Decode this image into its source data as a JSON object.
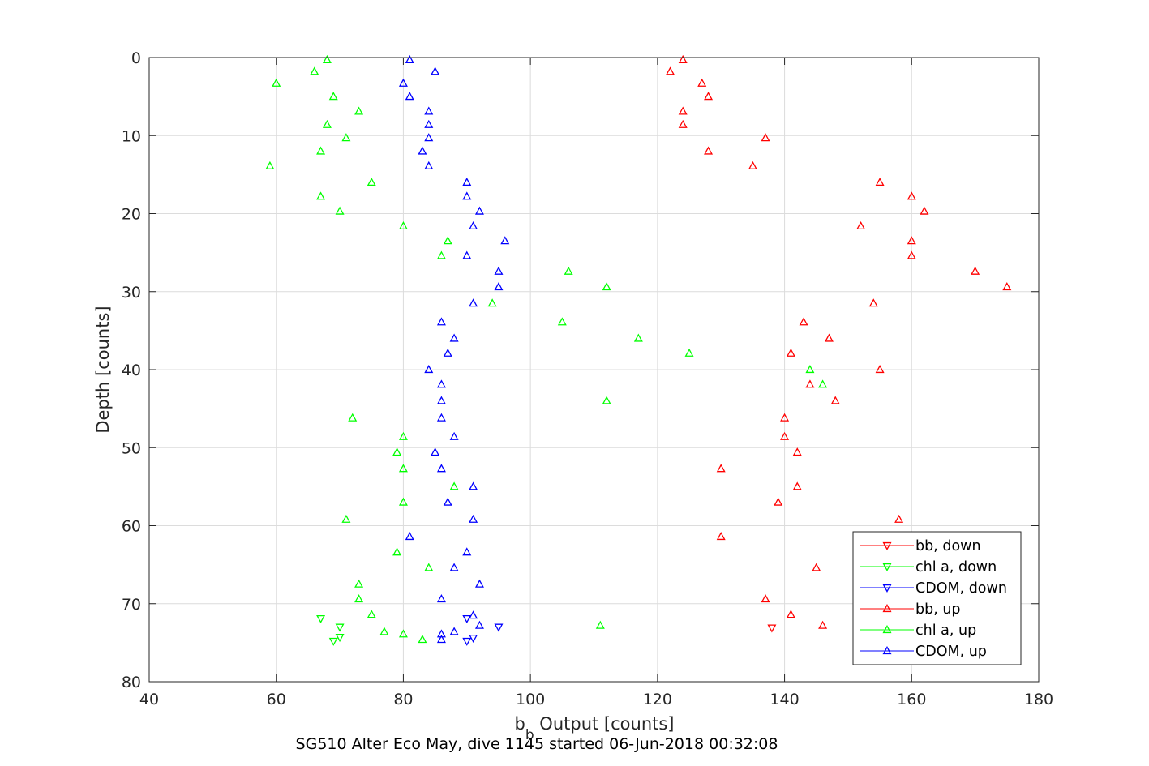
{
  "chart_data": {
    "type": "scatter",
    "title": "SG510 Alter Eco May, dive 1145 started 06-Jun-2018 00:32:08",
    "xlabel_main": "b",
    "xlabel_sub": "b",
    "xlabel_rest": " Output [counts]",
    "ylabel": "Depth [counts]",
    "xlim": [
      40,
      180
    ],
    "ylim": [
      0,
      80
    ],
    "y_reversed": true,
    "grid": true,
    "legend_position": "bottom-right",
    "x_ticks": [
      "40",
      "60",
      "80",
      "100",
      "120",
      "140",
      "160",
      "180"
    ],
    "y_ticks": [
      "0",
      "10",
      "20",
      "30",
      "40",
      "50",
      "60",
      "70",
      "80"
    ],
    "series": [
      {
        "name": "bb, down",
        "color": "#ff0000",
        "marker": "triangle-down",
        "points": [
          [
            138,
            73.1
          ]
        ]
      },
      {
        "name": "chl a, down",
        "color": "#00ff00",
        "marker": "triangle-down",
        "points": [
          [
            67,
            71.9
          ],
          [
            70,
            73.0
          ],
          [
            70,
            74.3
          ],
          [
            69,
            74.8
          ]
        ]
      },
      {
        "name": "CDOM, down",
        "color": "#0000ff",
        "marker": "triangle-down",
        "points": [
          [
            90,
            71.9
          ],
          [
            95,
            73.0
          ],
          [
            91,
            74.4
          ],
          [
            90,
            74.8
          ]
        ]
      },
      {
        "name": "bb, up",
        "color": "#ff0000",
        "marker": "triangle-up",
        "points": [
          [
            124,
            0.3
          ],
          [
            122,
            1.8
          ],
          [
            127,
            3.3
          ],
          [
            128,
            5.0
          ],
          [
            124,
            6.9
          ],
          [
            124,
            8.6
          ],
          [
            137,
            10.3
          ],
          [
            128,
            12.0
          ],
          [
            135,
            13.9
          ],
          [
            155,
            16.0
          ],
          [
            160,
            17.8
          ],
          [
            162,
            19.7
          ],
          [
            152,
            21.6
          ],
          [
            160,
            23.5
          ],
          [
            160,
            25.4
          ],
          [
            170,
            27.4
          ],
          [
            175,
            29.4
          ],
          [
            154,
            31.5
          ],
          [
            143,
            33.9
          ],
          [
            147,
            36.0
          ],
          [
            141,
            37.9
          ],
          [
            155,
            40.0
          ],
          [
            144,
            41.9
          ],
          [
            148,
            44.0
          ],
          [
            140,
            46.2
          ],
          [
            140,
            48.6
          ],
          [
            142,
            50.6
          ],
          [
            130,
            52.7
          ],
          [
            142,
            55.0
          ],
          [
            139,
            57.0
          ],
          [
            158,
            59.2
          ],
          [
            130,
            61.4
          ],
          [
            145,
            65.4
          ],
          [
            137,
            69.4
          ],
          [
            141,
            71.4
          ],
          [
            146,
            72.8
          ]
        ]
      },
      {
        "name": "chl a, up",
        "color": "#00ff00",
        "marker": "triangle-up",
        "points": [
          [
            68,
            0.3
          ],
          [
            66,
            1.8
          ],
          [
            60,
            3.3
          ],
          [
            69,
            5.0
          ],
          [
            73,
            6.9
          ],
          [
            68,
            8.6
          ],
          [
            71,
            10.3
          ],
          [
            67,
            12.0
          ],
          [
            59,
            13.9
          ],
          [
            75,
            16.0
          ],
          [
            67,
            17.8
          ],
          [
            70,
            19.7
          ],
          [
            80,
            21.6
          ],
          [
            87,
            23.5
          ],
          [
            86,
            25.4
          ],
          [
            106,
            27.4
          ],
          [
            112,
            29.4
          ],
          [
            94,
            31.5
          ],
          [
            105,
            33.9
          ],
          [
            117,
            36.0
          ],
          [
            125,
            37.9
          ],
          [
            144,
            40.0
          ],
          [
            146,
            41.9
          ],
          [
            112,
            44.0
          ],
          [
            72,
            46.2
          ],
          [
            80,
            48.6
          ],
          [
            79,
            50.6
          ],
          [
            80,
            52.7
          ],
          [
            88,
            55.0
          ],
          [
            80,
            57.0
          ],
          [
            71,
            59.2
          ],
          [
            79,
            63.4
          ],
          [
            84,
            65.4
          ],
          [
            73,
            67.5
          ],
          [
            73,
            69.4
          ],
          [
            75,
            71.4
          ],
          [
            111,
            72.8
          ],
          [
            77,
            73.6
          ],
          [
            80,
            73.9
          ],
          [
            83,
            74.6
          ]
        ]
      },
      {
        "name": "CDOM, up",
        "color": "#0000ff",
        "marker": "triangle-up",
        "points": [
          [
            81,
            0.3
          ],
          [
            85,
            1.8
          ],
          [
            80,
            3.3
          ],
          [
            81,
            5.0
          ],
          [
            84,
            6.9
          ],
          [
            84,
            8.6
          ],
          [
            84,
            10.3
          ],
          [
            83,
            12.0
          ],
          [
            84,
            13.9
          ],
          [
            90,
            16.0
          ],
          [
            90,
            17.8
          ],
          [
            92,
            19.7
          ],
          [
            91,
            21.6
          ],
          [
            96,
            23.5
          ],
          [
            90,
            25.4
          ],
          [
            95,
            27.4
          ],
          [
            95,
            29.4
          ],
          [
            91,
            31.5
          ],
          [
            86,
            33.9
          ],
          [
            88,
            36.0
          ],
          [
            87,
            37.9
          ],
          [
            84,
            40.0
          ],
          [
            86,
            41.9
          ],
          [
            86,
            44.0
          ],
          [
            86,
            46.2
          ],
          [
            88,
            48.6
          ],
          [
            85,
            50.6
          ],
          [
            86,
            52.7
          ],
          [
            91,
            55.0
          ],
          [
            87,
            57.0
          ],
          [
            91,
            59.2
          ],
          [
            81,
            61.4
          ],
          [
            90,
            63.4
          ],
          [
            88,
            65.4
          ],
          [
            92,
            67.5
          ],
          [
            86,
            69.4
          ],
          [
            91,
            71.5
          ],
          [
            92,
            72.8
          ],
          [
            88,
            73.6
          ],
          [
            86,
            73.9
          ],
          [
            86,
            74.6
          ]
        ]
      }
    ]
  }
}
